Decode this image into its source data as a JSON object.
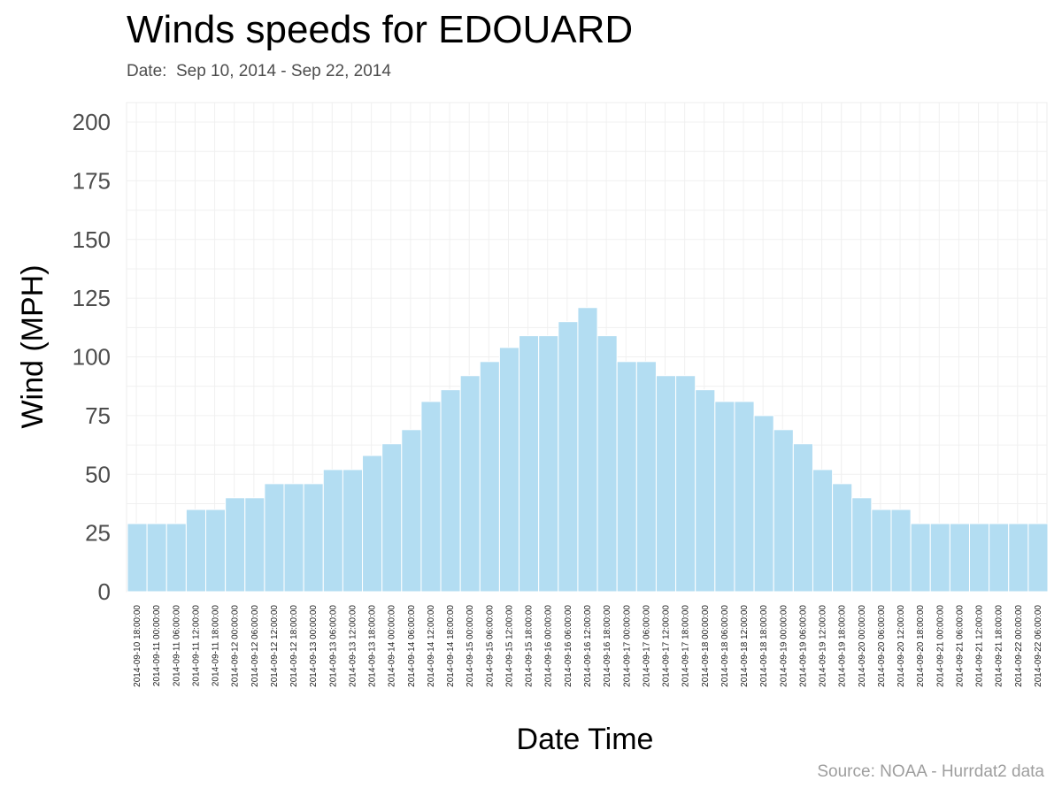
{
  "title": "Winds speeds for EDOUARD",
  "subtitle": "Date:  Sep 10, 2014 - Sep 22, 2014",
  "caption": "Source: NOAA - Hurrdat2 data",
  "colors": {
    "bar_fill": "#b3ddf2",
    "bar_stroke": "#ffffff",
    "grid": "#f0f0f0",
    "panel_border": "#ececec"
  },
  "chart_data": {
    "type": "bar",
    "title": "Winds speeds for EDOUARD",
    "subtitle": "Date:  Sep 10, 2014 - Sep 22, 2014",
    "xlabel": "Date Time",
    "ylabel": "Wind (MPH)",
    "ylim": [
      0,
      200
    ],
    "yticks": [
      0,
      25,
      50,
      75,
      100,
      125,
      150,
      175,
      200
    ],
    "grid": true,
    "categories": [
      "2014-09-10 18:00:00",
      "2014-09-11 00:00:00",
      "2014-09-11 06:00:00",
      "2014-09-11 12:00:00",
      "2014-09-11 18:00:00",
      "2014-09-12 00:00:00",
      "2014-09-12 06:00:00",
      "2014-09-12 12:00:00",
      "2014-09-12 18:00:00",
      "2014-09-13 00:00:00",
      "2014-09-13 06:00:00",
      "2014-09-13 12:00:00",
      "2014-09-13 18:00:00",
      "2014-09-14 00:00:00",
      "2014-09-14 06:00:00",
      "2014-09-14 12:00:00",
      "2014-09-14 18:00:00",
      "2014-09-15 00:00:00",
      "2014-09-15 06:00:00",
      "2014-09-15 12:00:00",
      "2014-09-15 18:00:00",
      "2014-09-16 00:00:00",
      "2014-09-16 06:00:00",
      "2014-09-16 12:00:00",
      "2014-09-16 18:00:00",
      "2014-09-17 00:00:00",
      "2014-09-17 06:00:00",
      "2014-09-17 12:00:00",
      "2014-09-17 18:00:00",
      "2014-09-18 00:00:00",
      "2014-09-18 06:00:00",
      "2014-09-18 12:00:00",
      "2014-09-18 18:00:00",
      "2014-09-19 00:00:00",
      "2014-09-19 06:00:00",
      "2014-09-19 12:00:00",
      "2014-09-19 18:00:00",
      "2014-09-20 00:00:00",
      "2014-09-20 06:00:00",
      "2014-09-20 12:00:00",
      "2014-09-20 18:00:00",
      "2014-09-21 00:00:00",
      "2014-09-21 06:00:00",
      "2014-09-21 12:00:00",
      "2014-09-21 18:00:00",
      "2014-09-22 00:00:00",
      "2014-09-22 06:00:00"
    ],
    "values": [
      29,
      29,
      29,
      35,
      35,
      40,
      40,
      46,
      46,
      46,
      52,
      52,
      58,
      63,
      69,
      81,
      86,
      92,
      98,
      104,
      109,
      109,
      115,
      121,
      109,
      98,
      98,
      92,
      92,
      86,
      81,
      81,
      75,
      69,
      63,
      52,
      46,
      40,
      35,
      35,
      29,
      29,
      29,
      29,
      29,
      29,
      29
    ]
  }
}
